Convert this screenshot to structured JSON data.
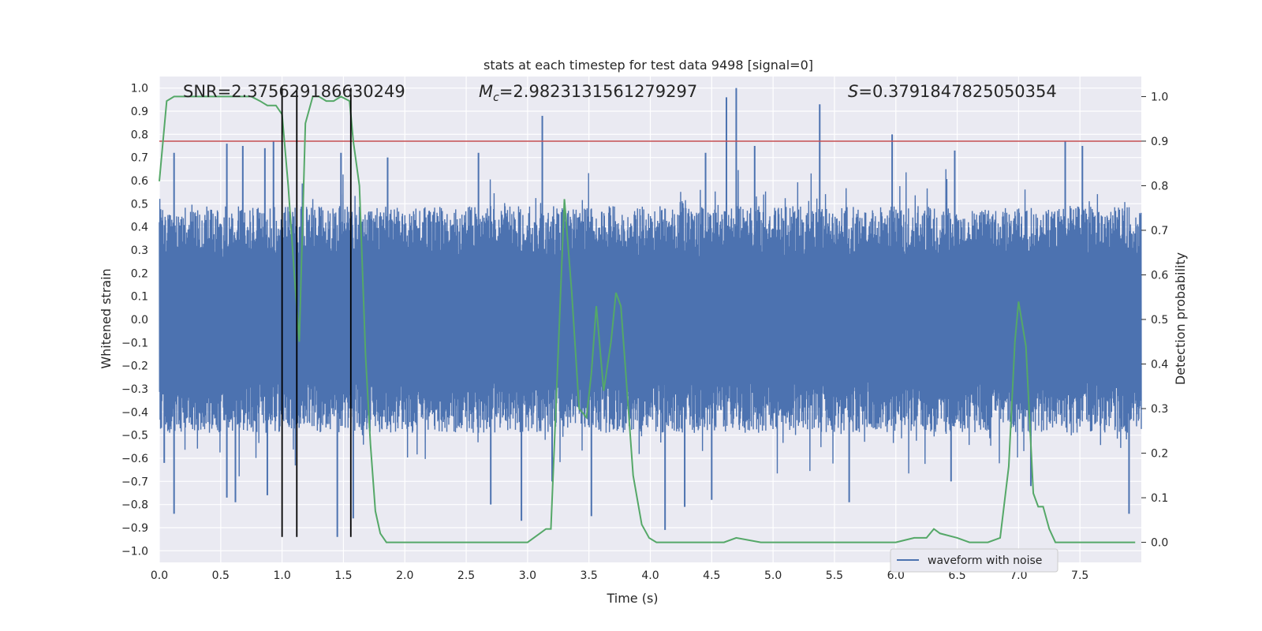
{
  "chart_data": {
    "type": "line",
    "title": "stats at each timestep for test data 9498 [signal=0]",
    "xlabel": "Time (s)",
    "ylabel": "Whitened strain",
    "y2label": "Detection probability",
    "xlim": [
      0.0,
      8.0
    ],
    "ylim": [
      -1.05,
      1.05
    ],
    "y2lim": [
      -0.045,
      1.045
    ],
    "xticks": [
      "0.0",
      "0.5",
      "1.0",
      "1.5",
      "2.0",
      "2.5",
      "3.0",
      "3.5",
      "4.0",
      "4.5",
      "5.0",
      "5.5",
      "6.0",
      "6.5",
      "7.0",
      "7.5"
    ],
    "yticks": [
      "1.0",
      "0.9",
      "0.8",
      "0.7",
      "0.6",
      "0.5",
      "0.4",
      "0.3",
      "0.2",
      "0.1",
      "0.0",
      "−0.1",
      "−0.2",
      "−0.3",
      "−0.4",
      "−0.5",
      "−0.6",
      "−0.7",
      "−0.8",
      "−0.9",
      "−1.0"
    ],
    "y2ticks": [
      "1.0",
      "0.9",
      "0.8",
      "0.7",
      "0.6",
      "0.5",
      "0.4",
      "0.3",
      "0.2",
      "0.1",
      "0.0"
    ],
    "annotations": {
      "snr": "SNR=2.375629186630249",
      "mc_prefix": "M",
      "mc_sub": "c",
      "mc_value": "=2.9823131561279297",
      "s_prefix": "S",
      "s_value": "=0.3791847825050354"
    },
    "threshold": {
      "value": 0.9,
      "axis": "y2",
      "color": "#c44e52"
    },
    "vlines": {
      "x": [
        1.0,
        1.12,
        1.56
      ],
      "ymin": -0.94,
      "ymax": 1.0,
      "color": "#000000"
    },
    "waveform": {
      "name": "waveform with noise",
      "color": "#4c72b0",
      "baseline_amplitude": 0.27,
      "peaks": [
        {
          "x": 0.12,
          "y": 0.72
        },
        {
          "x": 0.55,
          "y": 0.76
        },
        {
          "x": 0.68,
          "y": 0.75
        },
        {
          "x": 0.86,
          "y": 0.74
        },
        {
          "x": 0.93,
          "y": 0.77
        },
        {
          "x": 1.48,
          "y": 0.72
        },
        {
          "x": 1.86,
          "y": 0.7
        },
        {
          "x": 2.6,
          "y": 0.72
        },
        {
          "x": 3.12,
          "y": 0.88
        },
        {
          "x": 4.45,
          "y": 0.72
        },
        {
          "x": 4.62,
          "y": 0.96
        },
        {
          "x": 4.7,
          "y": 1.0
        },
        {
          "x": 4.85,
          "y": 0.75
        },
        {
          "x": 5.38,
          "y": 0.93
        },
        {
          "x": 5.97,
          "y": 0.8
        },
        {
          "x": 6.48,
          "y": 0.73
        },
        {
          "x": 7.38,
          "y": 0.77
        },
        {
          "x": 7.52,
          "y": 0.75
        },
        {
          "x": 0.04,
          "y": -0.62
        },
        {
          "x": 0.12,
          "y": -0.84
        },
        {
          "x": 0.55,
          "y": -0.77
        },
        {
          "x": 0.62,
          "y": -0.79
        },
        {
          "x": 0.88,
          "y": -0.76
        },
        {
          "x": 1.45,
          "y": -0.94
        },
        {
          "x": 1.58,
          "y": -0.86
        },
        {
          "x": 2.7,
          "y": -0.8
        },
        {
          "x": 2.95,
          "y": -0.87
        },
        {
          "x": 3.2,
          "y": -0.7
        },
        {
          "x": 3.52,
          "y": -0.85
        },
        {
          "x": 4.12,
          "y": -0.91
        },
        {
          "x": 4.28,
          "y": -0.81
        },
        {
          "x": 4.5,
          "y": -0.78
        },
        {
          "x": 5.62,
          "y": -0.79
        },
        {
          "x": 6.45,
          "y": -0.7
        },
        {
          "x": 7.1,
          "y": -0.72
        },
        {
          "x": 7.9,
          "y": -0.84
        }
      ]
    },
    "probability": {
      "name": "detection probability",
      "color": "#55a868",
      "x": [
        0.0,
        0.06,
        0.12,
        0.5,
        0.75,
        0.82,
        0.88,
        0.95,
        1.0,
        1.05,
        1.1,
        1.14,
        1.19,
        1.25,
        1.3,
        1.36,
        1.42,
        1.48,
        1.55,
        1.58,
        1.63,
        1.68,
        1.72,
        1.76,
        1.8,
        1.85,
        1.9,
        2.2,
        2.5,
        2.8,
        3.0,
        3.1,
        3.15,
        3.19,
        3.25,
        3.3,
        3.36,
        3.42,
        3.48,
        3.52,
        3.56,
        3.62,
        3.68,
        3.72,
        3.76,
        3.8,
        3.86,
        3.93,
        3.99,
        4.05,
        4.12,
        4.2,
        4.3,
        4.6,
        4.7,
        4.9,
        5.5,
        6.0,
        6.15,
        6.25,
        6.31,
        6.36,
        6.5,
        6.6,
        6.75,
        6.85,
        6.92,
        6.97,
        7.0,
        7.06,
        7.12,
        7.16,
        7.2,
        7.25,
        7.3,
        7.35,
        7.45,
        7.95
      ],
      "y": [
        0.81,
        0.99,
        1.0,
        1.0,
        1.0,
        0.99,
        0.98,
        0.98,
        0.96,
        0.8,
        0.6,
        0.45,
        0.94,
        1.0,
        1.0,
        0.99,
        0.99,
        1.0,
        0.99,
        0.9,
        0.8,
        0.42,
        0.22,
        0.07,
        0.02,
        0.0,
        0.0,
        0.0,
        0.0,
        0.0,
        0.0,
        0.02,
        0.03,
        0.03,
        0.43,
        0.77,
        0.56,
        0.3,
        0.28,
        0.38,
        0.53,
        0.34,
        0.45,
        0.56,
        0.53,
        0.38,
        0.15,
        0.04,
        0.01,
        0.0,
        0.0,
        0.0,
        0.0,
        0.0,
        0.01,
        0.0,
        0.0,
        0.0,
        0.01,
        0.01,
        0.03,
        0.02,
        0.01,
        0.0,
        0.0,
        0.01,
        0.17,
        0.45,
        0.54,
        0.44,
        0.11,
        0.08,
        0.08,
        0.03,
        0.0,
        0.0,
        0.0,
        0.0
      ]
    },
    "legend": {
      "label": "waveform with noise",
      "placement": "lower-right"
    }
  }
}
